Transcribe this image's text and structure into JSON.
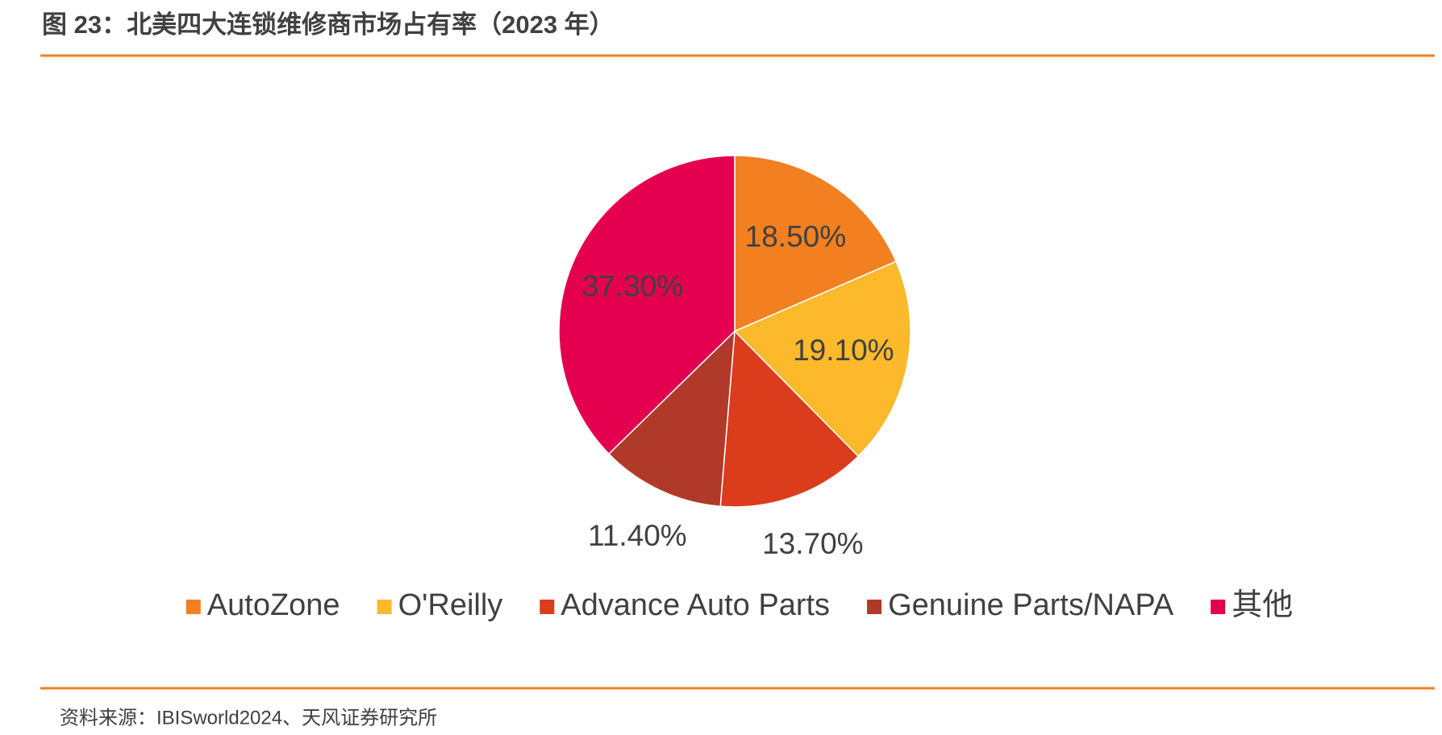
{
  "chart_data": {
    "type": "pie",
    "title": "图 23：北美四大连锁维修商市场占有率（2023 年）",
    "source": "资料来源：IBISworld2024、天风证券研究所",
    "categories": [
      "AutoZone",
      "O'Reilly",
      "Advance Auto Parts",
      "Genuine Parts/NAPA",
      "其他"
    ],
    "values": [
      18.5,
      19.1,
      13.7,
      11.4,
      37.3
    ],
    "value_labels": [
      "18.50%",
      "19.10%",
      "13.70%",
      "11.40%",
      "37.30%"
    ],
    "colors": [
      "#f28021",
      "#fbb92b",
      "#db3c1c",
      "#b0392a",
      "#e4004f"
    ],
    "legend": "bottom"
  }
}
